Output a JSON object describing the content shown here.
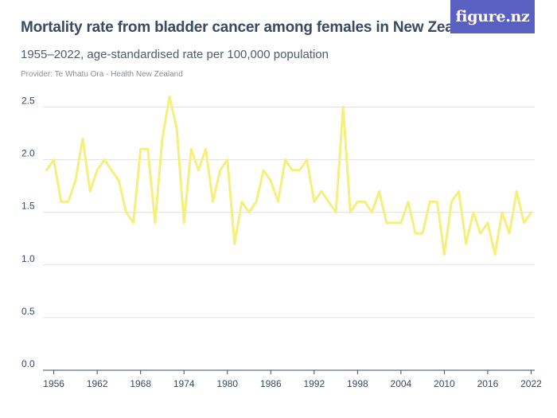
{
  "header": {
    "title": "Mortality rate from bladder cancer among females in New Zealand",
    "subtitle": "1955–2022, age-standardised rate per 100,000 population",
    "provider": "Provider: Te Whatu Ora - Health New Zealand",
    "logo_text": "figure.nz"
  },
  "colors": {
    "line": "#f5ef7e",
    "grid": "#e3e3e3",
    "axis": "#3b4a63",
    "logo_bg": "#5a5fc2"
  },
  "chart_data": {
    "type": "line",
    "title": "Mortality rate from bladder cancer among females in New Zealand",
    "subtitle": "1955–2022, age-standardised rate per 100,000 population",
    "xlabel": "",
    "ylabel": "",
    "xlim": [
      1954.5,
      2022.5
    ],
    "ylim": [
      0,
      2.7
    ],
    "grid": true,
    "y_ticks": [
      0.0,
      0.5,
      1.0,
      1.5,
      2.0,
      2.5
    ],
    "y_tick_labels": [
      "0.0",
      "0.5",
      "1.0",
      "1.5",
      "2.0",
      "2.5"
    ],
    "x_ticks": [
      1956,
      1962,
      1968,
      1974,
      1980,
      1986,
      1992,
      1998,
      2004,
      2010,
      2016,
      2022
    ],
    "x_tick_labels": [
      "1956",
      "1962",
      "1968",
      "1974",
      "1980",
      "1986",
      "1992",
      "1998",
      "2004",
      "2010",
      "2016",
      "2022"
    ],
    "series": [
      {
        "name": "",
        "x": [
          1955,
          1956,
          1957,
          1958,
          1959,
          1960,
          1961,
          1962,
          1963,
          1964,
          1965,
          1966,
          1967,
          1968,
          1969,
          1970,
          1971,
          1972,
          1973,
          1974,
          1975,
          1976,
          1977,
          1978,
          1979,
          1980,
          1981,
          1982,
          1983,
          1984,
          1985,
          1986,
          1987,
          1988,
          1989,
          1990,
          1991,
          1992,
          1993,
          1994,
          1995,
          1996,
          1997,
          1998,
          1999,
          2000,
          2001,
          2002,
          2003,
          2004,
          2005,
          2006,
          2007,
          2008,
          2009,
          2010,
          2011,
          2012,
          2013,
          2014,
          2015,
          2016,
          2017,
          2018,
          2019,
          2020,
          2021,
          2022
        ],
        "values": [
          1.9,
          2.0,
          1.6,
          1.6,
          1.8,
          2.2,
          1.7,
          1.9,
          2.0,
          1.9,
          1.8,
          1.5,
          1.4,
          2.1,
          2.1,
          1.4,
          2.2,
          2.6,
          2.3,
          1.4,
          2.1,
          1.9,
          2.1,
          1.6,
          1.9,
          2.0,
          1.2,
          1.6,
          1.5,
          1.6,
          1.9,
          1.8,
          1.6,
          2.0,
          1.9,
          1.9,
          2.0,
          1.6,
          1.7,
          1.6,
          1.5,
          2.5,
          1.5,
          1.6,
          1.6,
          1.5,
          1.7,
          1.4,
          1.4,
          1.4,
          1.6,
          1.3,
          1.3,
          1.6,
          1.6,
          1.1,
          1.6,
          1.7,
          1.2,
          1.5,
          1.3,
          1.4,
          1.1,
          1.5,
          1.3,
          1.7,
          1.4,
          1.5
        ]
      }
    ]
  }
}
